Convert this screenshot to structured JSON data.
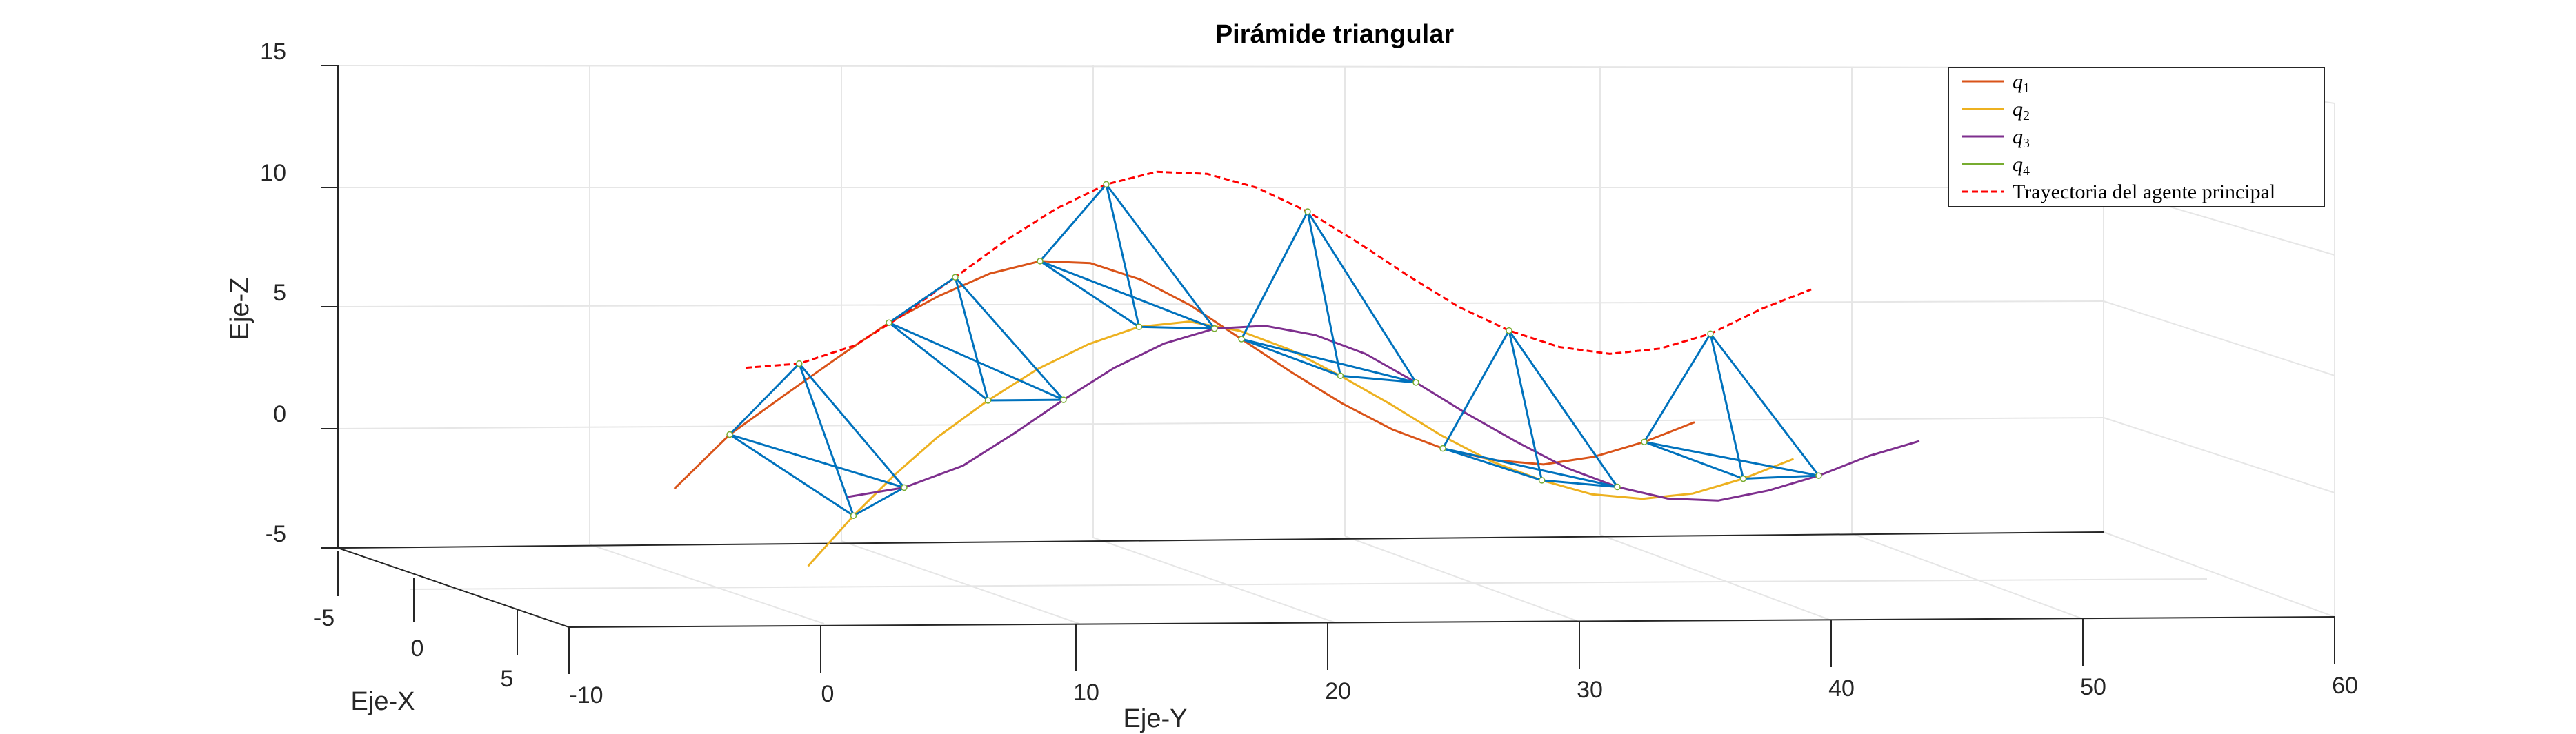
{
  "chart_data": {
    "type": "line",
    "title": "Pirámide triangular",
    "xlabel": "Eje-X",
    "ylabel": "Eje-Y",
    "zlabel": "Eje-Z",
    "xlim": [
      -8,
      8
    ],
    "ylim": [
      -10,
      60
    ],
    "zlim": [
      -5,
      15
    ],
    "x_ticks": [
      "-5",
      "0",
      "5"
    ],
    "y_ticks": [
      "-10",
      "0",
      "10",
      "20",
      "30",
      "40",
      "50",
      "60"
    ],
    "z_ticks": [
      "-5",
      "0",
      "5",
      "10",
      "15"
    ],
    "grid": true,
    "legend_position": "top-right",
    "legend": [
      "q1",
      "q2",
      "q3",
      "q4",
      "Trayectoria del agente principal"
    ],
    "series": [
      {
        "name": "q1",
        "color": "#D95319",
        "points": [
          [
            -5.8,
            -2,
            -3.8
          ],
          [
            -5.5,
            0,
            -1.5
          ],
          [
            -5.2,
            2,
            0.2
          ],
          [
            -5,
            4,
            1.8
          ],
          [
            -5,
            6,
            3.2
          ],
          [
            -5,
            8,
            4.3
          ],
          [
            -5,
            10,
            5.2
          ],
          [
            -5,
            12,
            5.7
          ],
          [
            -5,
            14,
            5.6
          ],
          [
            -5,
            16,
            4.9
          ],
          [
            -5,
            18,
            3.8
          ],
          [
            -5,
            20,
            2.4
          ],
          [
            -5,
            22,
            1.0
          ],
          [
            -5,
            24,
            -0.3
          ],
          [
            -5,
            26,
            -1.4
          ],
          [
            -5,
            28,
            -2.2
          ],
          [
            -5,
            30,
            -2.7
          ],
          [
            -5,
            32,
            -2.9
          ],
          [
            -5,
            34,
            -2.6
          ],
          [
            -5,
            36,
            -2.0
          ],
          [
            -5,
            38,
            -1.2
          ]
        ]
      },
      {
        "name": "q2",
        "color": "#EDB120",
        "points": [
          [
            3.8,
            -3,
            -4.8
          ],
          [
            3.5,
            -1,
            -2.8
          ],
          [
            3,
            1,
            -1.2
          ],
          [
            2.5,
            3,
            0.2
          ],
          [
            2.5,
            5,
            1.7
          ],
          [
            2.5,
            7,
            3.0
          ],
          [
            2.5,
            9,
            4.0
          ],
          [
            2.5,
            11,
            4.7
          ],
          [
            2.5,
            13,
            4.9
          ],
          [
            2.5,
            15,
            4.5
          ],
          [
            2.5,
            17,
            3.7
          ],
          [
            2.5,
            19,
            2.6
          ],
          [
            2.5,
            21,
            1.4
          ],
          [
            2.5,
            23,
            0.1
          ],
          [
            2.5,
            25,
            -1.0
          ],
          [
            2.5,
            27,
            -1.8
          ],
          [
            2.5,
            29,
            -2.4
          ],
          [
            2.5,
            31,
            -2.6
          ],
          [
            2.5,
            33,
            -2.4
          ],
          [
            2.5,
            35,
            -1.8
          ],
          [
            2.5,
            37,
            -1.0
          ]
        ]
      },
      {
        "name": "q3",
        "color": "#7E2F8E",
        "points": [
          [
            1.5,
            0,
            -2.5
          ],
          [
            2,
            2,
            -2.0
          ],
          [
            2.5,
            4,
            -1.0
          ],
          [
            2.5,
            6,
            0.3
          ],
          [
            2.5,
            8,
            1.7
          ],
          [
            2.5,
            10,
            3.0
          ],
          [
            2.5,
            12,
            4.0
          ],
          [
            2.5,
            14,
            4.6
          ],
          [
            2.5,
            16,
            4.7
          ],
          [
            2.5,
            18,
            4.3
          ],
          [
            2.5,
            20,
            3.5
          ],
          [
            2.5,
            22,
            2.3
          ],
          [
            2.5,
            24,
            1.0
          ],
          [
            2.5,
            26,
            -0.2
          ],
          [
            2.5,
            28,
            -1.3
          ],
          [
            2.5,
            30,
            -2.1
          ],
          [
            2.5,
            32,
            -2.6
          ],
          [
            2.5,
            34,
            -2.7
          ],
          [
            2.5,
            36,
            -2.3
          ],
          [
            2.5,
            38,
            -1.7
          ],
          [
            2.5,
            40,
            -0.9
          ],
          [
            2.5,
            42,
            -0.3
          ]
        ]
      },
      {
        "name": "q4",
        "color": "#77AC30",
        "points": []
      },
      {
        "name": "Trayectoria del agente principal",
        "color": "#FF0000",
        "points": [
          [
            -1.5,
            -2,
            2.2
          ],
          [
            -1.3,
            0,
            2.4
          ],
          [
            -1,
            2,
            3.2
          ],
          [
            -1,
            4,
            4.5
          ],
          [
            -1,
            6,
            6.0
          ],
          [
            -1,
            8,
            7.5
          ],
          [
            -1,
            10,
            8.8
          ],
          [
            -1,
            12,
            9.8
          ],
          [
            -1,
            14,
            10.3
          ],
          [
            -1,
            16,
            10.2
          ],
          [
            -1,
            18,
            9.6
          ],
          [
            -1,
            20,
            8.6
          ],
          [
            -1,
            22,
            7.3
          ],
          [
            -1,
            24,
            5.9
          ],
          [
            -1,
            26,
            4.6
          ],
          [
            -1,
            28,
            3.6
          ],
          [
            -1,
            30,
            2.9
          ],
          [
            -1,
            32,
            2.6
          ],
          [
            -1,
            34,
            2.8
          ],
          [
            -1,
            36,
            3.4
          ],
          [
            -1,
            38,
            4.4
          ],
          [
            -1,
            40,
            5.2
          ]
        ]
      }
    ],
    "pyramid_color": "#0072BD"
  }
}
